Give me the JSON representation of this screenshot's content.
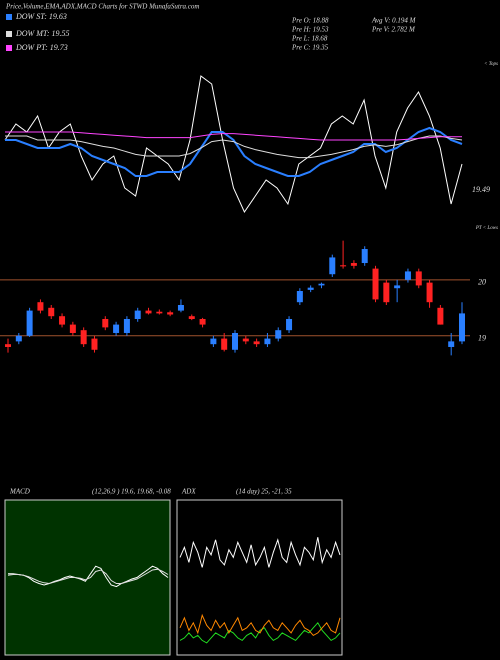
{
  "header": {
    "title": "Price,Volume,EMA,ADX,MACD Charts for STWD MunafaSutra.com",
    "legend": [
      "DOW ST: 19.63",
      "DOW MT: 19.55",
      "DOW PT: 19.73"
    ],
    "stats": [
      "Pre  O: 18.88",
      "Avg V: 0.194  M",
      "Pre  H: 19.53",
      "Pre  V: 2.782  M",
      "Pre  L: 18.68",
      "Pre  C: 19.35"
    ],
    "tops": "< Tops",
    "lows": "PT < Lows",
    "last": "19.49"
  },
  "chart_data": [
    {
      "type": "line",
      "ylim": [
        18.5,
        20.5
      ],
      "series": [
        {
          "name": "Price",
          "color": "#ffffff",
          "values": [
            19.5,
            19.7,
            19.6,
            19.8,
            19.4,
            19.6,
            19.7,
            19.3,
            19.0,
            19.2,
            19.3,
            18.9,
            18.8,
            19.4,
            19.3,
            19.2,
            19.0,
            19.5,
            20.3,
            20.2,
            19.5,
            18.9,
            18.6,
            18.8,
            19.0,
            18.9,
            18.7,
            19.2,
            19.3,
            19.4,
            19.7,
            19.8,
            19.7,
            20.0,
            19.3,
            18.9,
            19.6,
            19.9,
            20.1,
            19.8,
            19.4,
            18.7,
            19.2
          ]
        },
        {
          "name": "EMA short",
          "color": "#2a7fff",
          "values": [
            19.5,
            19.5,
            19.45,
            19.4,
            19.4,
            19.4,
            19.45,
            19.4,
            19.3,
            19.25,
            19.2,
            19.15,
            19.05,
            19.05,
            19.1,
            19.1,
            19.1,
            19.2,
            19.4,
            19.6,
            19.6,
            19.5,
            19.3,
            19.2,
            19.15,
            19.1,
            19.05,
            19.05,
            19.1,
            19.2,
            19.25,
            19.3,
            19.35,
            19.45,
            19.45,
            19.35,
            19.4,
            19.5,
            19.6,
            19.65,
            19.6,
            19.5,
            19.45
          ]
        },
        {
          "name": "EMA mid",
          "color": "#dddddd",
          "values": [
            19.55,
            19.55,
            19.55,
            19.5,
            19.5,
            19.5,
            19.5,
            19.48,
            19.45,
            19.42,
            19.4,
            19.36,
            19.32,
            19.3,
            19.3,
            19.3,
            19.3,
            19.33,
            19.4,
            19.48,
            19.5,
            19.48,
            19.42,
            19.38,
            19.35,
            19.32,
            19.3,
            19.28,
            19.28,
            19.3,
            19.32,
            19.35,
            19.38,
            19.42,
            19.44,
            19.42,
            19.44,
            19.48,
            19.52,
            19.55,
            19.55,
            19.52,
            19.5
          ]
        },
        {
          "name": "EMA long",
          "color": "#ff44ff",
          "values": [
            19.6,
            19.6,
            19.6,
            19.6,
            19.6,
            19.6,
            19.6,
            19.59,
            19.58,
            19.57,
            19.56,
            19.55,
            19.54,
            19.53,
            19.53,
            19.53,
            19.53,
            19.53,
            19.55,
            19.57,
            19.58,
            19.58,
            19.57,
            19.56,
            19.55,
            19.54,
            19.53,
            19.52,
            19.51,
            19.5,
            19.5,
            19.5,
            19.5,
            19.5,
            19.5,
            19.5,
            19.5,
            19.51,
            19.52,
            19.53,
            19.54,
            19.54,
            19.54
          ]
        }
      ]
    },
    {
      "type": "candlestick",
      "ylim": [
        18.21,
        20.89
      ],
      "yticks": [
        19,
        20
      ],
      "open": [
        18.85,
        18.9,
        19.0,
        19.6,
        19.5,
        19.35,
        19.2,
        19.1,
        18.95,
        19.3,
        19.05,
        19.05,
        19.3,
        19.45,
        19.43,
        19.42,
        19.45,
        19.35,
        19.3,
        18.85,
        18.95,
        18.75,
        18.95,
        18.9,
        18.85,
        18.95,
        19.1,
        19.6,
        19.82,
        19.9,
        20.1,
        20.26,
        20.3,
        20.3,
        20.2,
        19.95,
        19.85,
        20.0,
        20.15,
        19.95,
        19.5,
        18.8,
        18.9
      ],
      "high": [
        18.95,
        19.05,
        19.5,
        19.65,
        19.55,
        19.4,
        19.25,
        19.15,
        19.0,
        19.35,
        19.25,
        19.35,
        19.5,
        19.5,
        19.47,
        19.45,
        19.65,
        19.38,
        19.32,
        19.0,
        19.05,
        19.1,
        19.0,
        18.95,
        19.05,
        19.15,
        19.35,
        19.85,
        19.9,
        19.95,
        20.45,
        20.7,
        20.35,
        20.6,
        20.25,
        20.0,
        20.0,
        20.2,
        20.2,
        20.0,
        19.55,
        19.05,
        19.6
      ],
      "low": [
        18.7,
        18.85,
        18.98,
        19.4,
        19.3,
        19.15,
        19.0,
        18.8,
        18.7,
        19.1,
        19.0,
        19.0,
        19.25,
        19.38,
        19.38,
        19.35,
        19.42,
        19.28,
        19.15,
        18.8,
        18.72,
        18.7,
        18.85,
        18.8,
        18.8,
        18.9,
        19.05,
        19.55,
        19.78,
        19.85,
        20.05,
        20.2,
        20.2,
        20.25,
        19.6,
        19.55,
        19.6,
        19.95,
        19.85,
        19.5,
        19.2,
        18.65,
        18.85
      ],
      "close": [
        18.8,
        19.0,
        19.45,
        19.45,
        19.35,
        19.2,
        19.05,
        18.85,
        18.75,
        19.15,
        19.2,
        19.3,
        19.45,
        19.4,
        19.4,
        19.38,
        19.55,
        19.3,
        19.2,
        18.95,
        18.75,
        19.05,
        18.9,
        18.85,
        18.95,
        19.1,
        19.3,
        19.8,
        19.86,
        19.93,
        20.4,
        20.24,
        20.25,
        20.55,
        19.65,
        19.6,
        19.9,
        20.15,
        19.9,
        19.6,
        19.2,
        18.9,
        19.4
      ]
    },
    {
      "type": "line",
      "title": "MACD",
      "subtitle": "(12,26,9 ) 19.6, 19.68, -0.08",
      "ylim": [
        -1,
        1
      ],
      "series": [
        {
          "name": "MACD line",
          "color": "#ffffff",
          "values": [
            0.05,
            0.05,
            0.04,
            0.03,
            0.0,
            -0.05,
            -0.08,
            -0.1,
            -0.08,
            -0.05,
            -0.03,
            0.0,
            0.02,
            0.0,
            -0.02,
            -0.05,
            0.05,
            0.15,
            0.12,
            0.0,
            -0.1,
            -0.12,
            -0.08,
            -0.05,
            -0.02,
            0.0,
            0.05,
            0.1,
            0.15,
            0.12,
            0.05,
            0.0
          ]
        },
        {
          "name": "Signal",
          "color": "#dddddd",
          "values": [
            0.03,
            0.04,
            0.04,
            0.03,
            0.01,
            -0.02,
            -0.05,
            -0.07,
            -0.08,
            -0.06,
            -0.04,
            -0.02,
            0.0,
            0.0,
            -0.01,
            -0.03,
            0.0,
            0.08,
            0.1,
            0.05,
            -0.04,
            -0.08,
            -0.08,
            -0.06,
            -0.04,
            -0.02,
            0.02,
            0.06,
            0.1,
            0.11,
            0.08,
            0.04
          ]
        }
      ]
    },
    {
      "type": "line",
      "title": "ADX",
      "subtitle": "(14 day) 25, -21, 35",
      "ylim": [
        0,
        60
      ],
      "series": [
        {
          "name": "ADX",
          "color": "#ffffff",
          "values": [
            38,
            42,
            36,
            44,
            40,
            34,
            42,
            39,
            45,
            37,
            35,
            41,
            38,
            44,
            40,
            36,
            43,
            35,
            38,
            42,
            34,
            40,
            45,
            38,
            36,
            44,
            39,
            35,
            42,
            40,
            37,
            46,
            36,
            41,
            38,
            44,
            39
          ]
        },
        {
          "name": "+DI",
          "color": "#22dd22",
          "values": [
            5,
            6,
            8,
            6,
            7,
            5,
            4,
            6,
            8,
            7,
            6,
            9,
            8,
            6,
            5,
            7,
            8,
            6,
            9,
            10,
            7,
            5,
            6,
            8,
            7,
            6,
            5,
            7,
            9,
            8,
            10,
            12,
            9,
            7,
            5,
            6,
            8
          ]
        },
        {
          "name": "-DI",
          "color": "#ff8800",
          "values": [
            10,
            14,
            9,
            12,
            8,
            15,
            11,
            9,
            13,
            10,
            12,
            8,
            11,
            14,
            9,
            10,
            12,
            9,
            8,
            11,
            13,
            10,
            9,
            12,
            10,
            8,
            11,
            13,
            10,
            9,
            7,
            8,
            10,
            12,
            9,
            8,
            14
          ]
        }
      ]
    }
  ]
}
